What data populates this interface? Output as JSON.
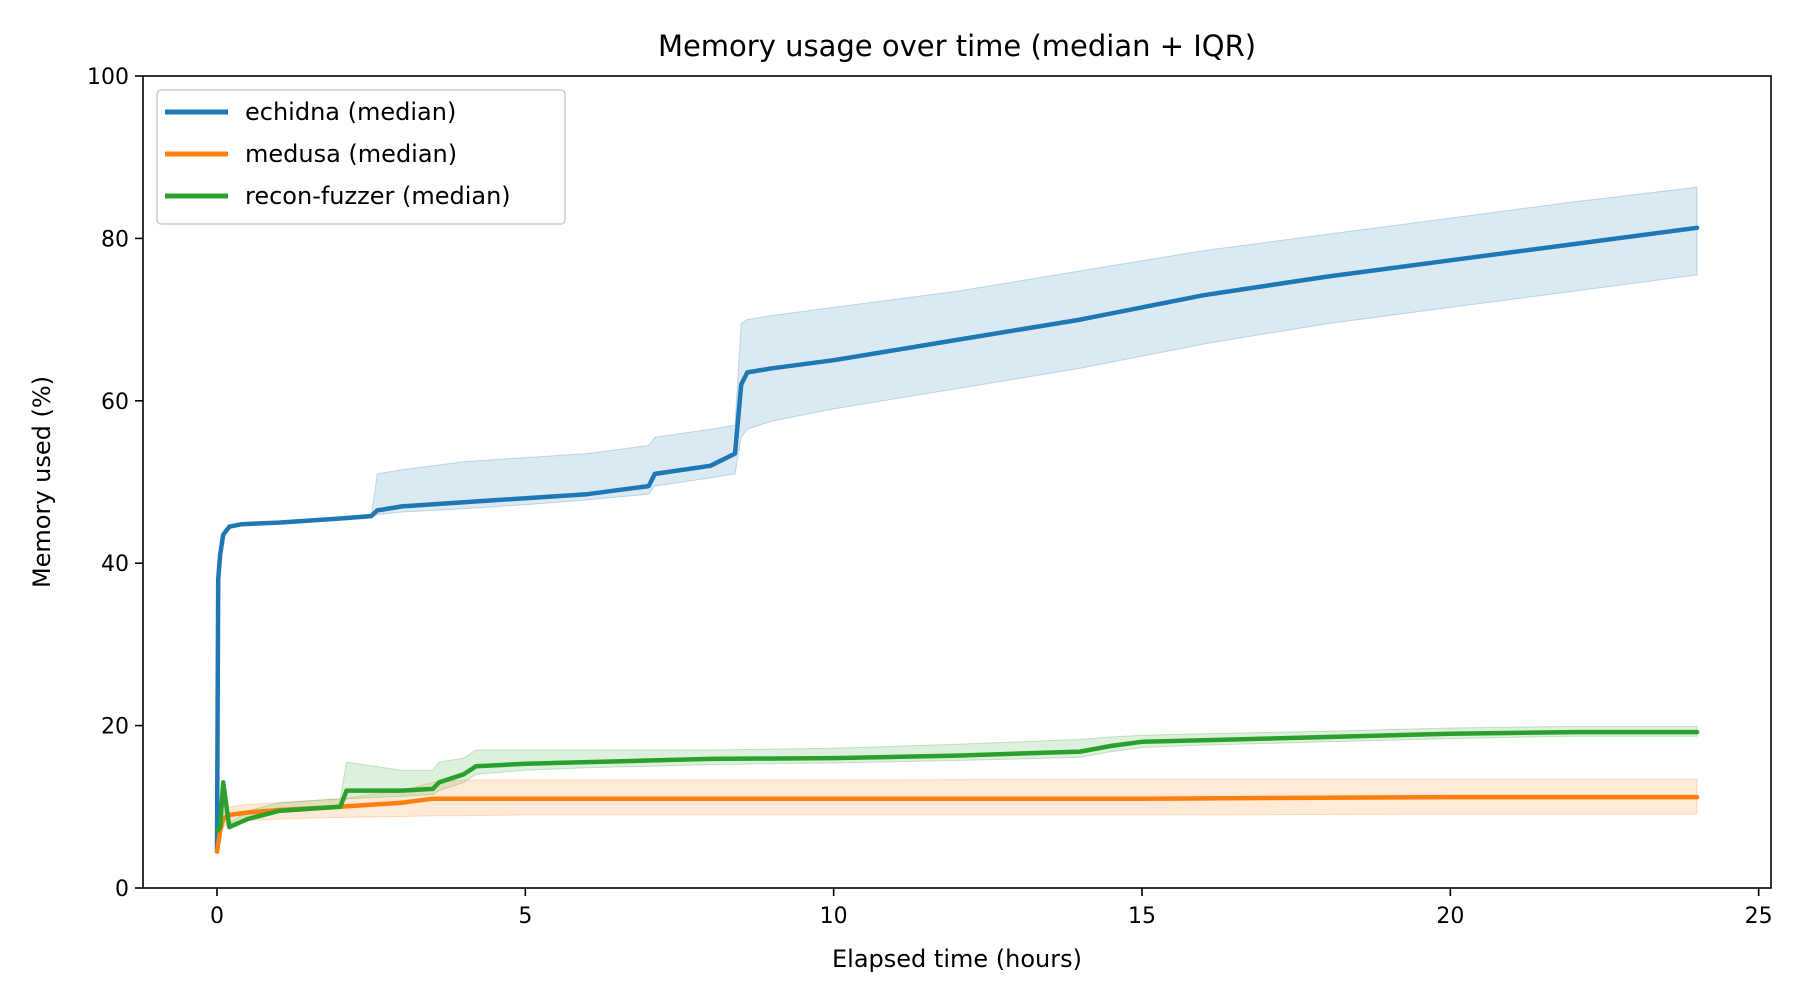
{
  "chart_data": {
    "type": "line",
    "title": "Memory usage over time (median + IQR)",
    "xlabel": "Elapsed time (hours)",
    "ylabel": "Memory used (%)",
    "xlim": [
      -1.2,
      25.2
    ],
    "ylim": [
      0,
      100
    ],
    "xticks": [
      0,
      5,
      10,
      15,
      20,
      25
    ],
    "yticks": [
      0,
      20,
      40,
      60,
      80,
      100
    ],
    "grid": false,
    "legend_position": "upper-left",
    "series": [
      {
        "name": "echidna (median)",
        "color": "#1f77b4",
        "x": [
          0,
          0.02,
          0.05,
          0.1,
          0.2,
          0.4,
          1,
          2,
          2.5,
          2.6,
          3,
          4,
          5,
          6,
          7,
          7.1,
          8,
          8.4,
          8.5,
          8.6,
          9,
          10,
          12,
          14,
          16,
          18,
          20,
          22,
          24
        ],
        "median": [
          4.5,
          38,
          41,
          43.5,
          44.5,
          44.8,
          45,
          45.5,
          45.8,
          46.5,
          47,
          47.5,
          48,
          48.5,
          49.5,
          51,
          52,
          53.5,
          62,
          63.5,
          64,
          65,
          67.5,
          70,
          73,
          75.3,
          77.3,
          79.3,
          81.3
        ],
        "q1": [
          4.5,
          38,
          41,
          43.5,
          44.5,
          44.8,
          45,
          45.5,
          45.8,
          46,
          46.3,
          46.7,
          47.2,
          47.8,
          48.5,
          49.5,
          50.5,
          51,
          55.5,
          56.5,
          57.5,
          59,
          61.5,
          64,
          67,
          69.5,
          71.5,
          73.5,
          75.5
        ],
        "q3": [
          4.5,
          38,
          41,
          43.5,
          44.5,
          44.8,
          45,
          45.5,
          45.8,
          51,
          51.5,
          52.5,
          53,
          53.5,
          54.5,
          55.5,
          56.5,
          57,
          69.5,
          70,
          70.5,
          71.5,
          73.5,
          76,
          78.5,
          80.5,
          82.5,
          84.5,
          86.3
        ]
      },
      {
        "name": "medusa (median)",
        "color": "#ff7f0e",
        "x": [
          0,
          0.05,
          0.1,
          0.2,
          0.5,
          1,
          2,
          3,
          3.5,
          4,
          5,
          10,
          15,
          20,
          24
        ],
        "median": [
          4.5,
          7,
          8.5,
          9,
          9.3,
          9.6,
          10,
          10.5,
          11,
          11,
          11,
          11,
          11,
          11.2,
          11.2
        ],
        "q1": [
          4.5,
          6.5,
          7.5,
          8,
          8.3,
          8.5,
          8.7,
          8.8,
          8.9,
          8.9,
          9,
          9,
          9,
          9.1,
          9.1
        ],
        "q3": [
          4.5,
          8,
          9.5,
          10,
          10.3,
          10.5,
          11,
          12,
          13,
          13.3,
          13.3,
          13.3,
          13.4,
          13.4,
          13.4
        ]
      },
      {
        "name": "recon-fuzzer (median)",
        "color": "#2ca02c",
        "x": [
          0,
          0.05,
          0.1,
          0.2,
          0.5,
          1,
          2,
          2.1,
          3,
          3.5,
          3.6,
          4,
          4.2,
          5,
          6,
          7,
          8,
          10,
          12,
          14,
          14.5,
          15,
          16,
          18,
          20,
          22,
          24
        ],
        "median": [
          7,
          7.5,
          13,
          7.5,
          8.5,
          9.5,
          10,
          12,
          12,
          12.2,
          13,
          14,
          15,
          15.3,
          15.5,
          15.7,
          15.9,
          16,
          16.3,
          16.8,
          17.5,
          18,
          18.2,
          18.6,
          19,
          19.2,
          19.2
        ],
        "q1": [
          7,
          7.5,
          9,
          7.5,
          8.5,
          9.5,
          10,
          11,
          11.3,
          11.5,
          12,
          13,
          14,
          14.5,
          14.8,
          15,
          15.2,
          15.4,
          15.7,
          16.1,
          16.8,
          17.3,
          17.6,
          18,
          18.4,
          18.7,
          18.7
        ],
        "q3": [
          7,
          7.5,
          13,
          8,
          9.5,
          10.5,
          11,
          15.5,
          14.5,
          14.5,
          15.5,
          16,
          17,
          17,
          17,
          17,
          17,
          17.2,
          17.7,
          18.3,
          18.6,
          18.8,
          19,
          19.3,
          19.7,
          19.9,
          19.9
        ]
      }
    ]
  }
}
